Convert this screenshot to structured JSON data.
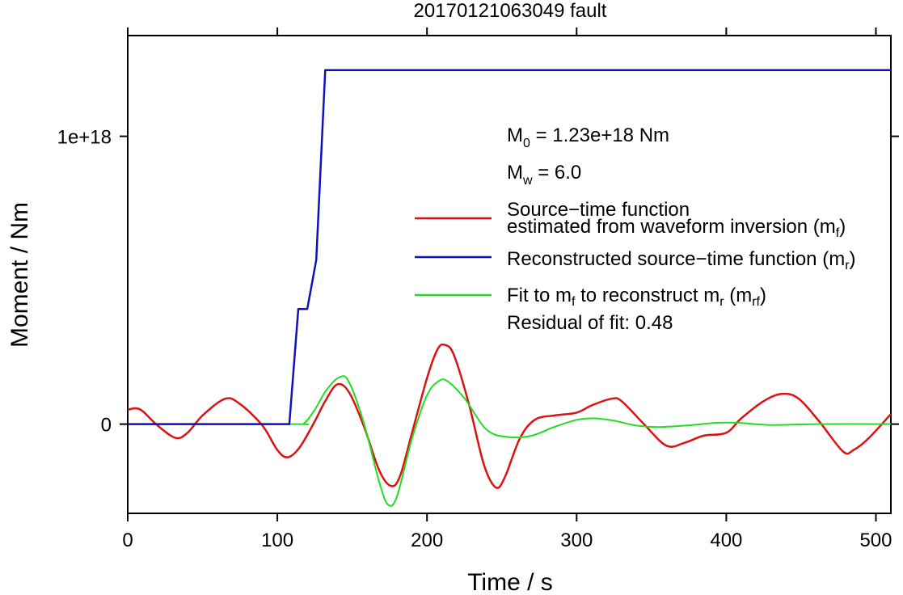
{
  "chart_data": {
    "type": "line",
    "title": "20170121063049 fault",
    "xlabel": "Time / s",
    "ylabel": "Moment / Nm",
    "xlim": [
      0,
      510
    ],
    "ylim": [
      -3.1e+17,
      1.35e+18
    ],
    "x_ticks": [
      0,
      100,
      200,
      300,
      400,
      500
    ],
    "x_tick_labels": [
      "0",
      "100",
      "200",
      "300",
      "400",
      "500"
    ],
    "y_ticks": [
      0,
      1e+18
    ],
    "y_tick_labels": [
      "0",
      "1e+18"
    ],
    "grid": false,
    "colors": {
      "reconstructed": "#1010c0",
      "waveform": "#dd1111",
      "fit": "#22dd22"
    },
    "annotations": {
      "m0_main": "M",
      "m0_sub": "0",
      "m0_rest": " = 1.23e+18 Nm",
      "mw_main": "M",
      "mw_sub": "w",
      "mw_rest": " = 6.0",
      "residual": "Residual of fit: 0.48"
    },
    "legend": {
      "placement": "right",
      "entries": [
        {
          "id": "waveform",
          "line1": "Source−time function",
          "line2_main": "estimated from waveform inversion (m",
          "line2_sub": "f",
          "line2_end": ")"
        },
        {
          "id": "reconstructed",
          "main": "Reconstructed source−time function (m",
          "sub": "r",
          "end": ")"
        },
        {
          "id": "fit",
          "p1": "Fit to m",
          "s1": "f",
          "p2": " to reconstruct m",
          "s2": "r",
          "p3": " (m",
          "s3": "rf",
          "p4": ")"
        }
      ]
    },
    "series": [
      {
        "id": "reconstructed",
        "points": [
          [
            0,
            0
          ],
          [
            108,
            0
          ],
          [
            114,
            4e+17
          ],
          [
            120,
            4e+17
          ],
          [
            126,
            5.7e+17
          ],
          [
            132,
            1.23e+18
          ],
          [
            510,
            1.23e+18
          ]
        ]
      },
      {
        "id": "waveform",
        "points": [
          [
            0,
            5e+16
          ],
          [
            5,
            5.5e+16
          ],
          [
            10,
            4.5e+16
          ],
          [
            20,
            -5000000000000000.0
          ],
          [
            32,
            -4.8e+16
          ],
          [
            40,
            -3e+16
          ],
          [
            50,
            3e+16
          ],
          [
            65,
            8.8e+16
          ],
          [
            75,
            7e+16
          ],
          [
            90,
            -5000000000000000.0
          ],
          [
            100,
            -9e+16
          ],
          [
            107,
            -1.15e+17
          ],
          [
            115,
            -8e+16
          ],
          [
            125,
            1e+16
          ],
          [
            132,
            8e+16
          ],
          [
            140,
            1.38e+17
          ],
          [
            148,
            1.1e+17
          ],
          [
            158,
            -1e+16
          ],
          [
            168,
            -1.6e+17
          ],
          [
            176,
            -2.15e+17
          ],
          [
            182,
            -1.8e+17
          ],
          [
            190,
            -3e+16
          ],
          [
            200,
            1.6e+17
          ],
          [
            207,
            2.6e+17
          ],
          [
            212,
            2.75e+17
          ],
          [
            218,
            2.4e+17
          ],
          [
            228,
            7e+16
          ],
          [
            238,
            -1.4e+17
          ],
          [
            246,
            -2.2e+17
          ],
          [
            252,
            -1.85e+17
          ],
          [
            262,
            -5e+16
          ],
          [
            272,
            1.5e+16
          ],
          [
            285,
            3e+16
          ],
          [
            300,
            4e+16
          ],
          [
            310,
            6.5e+16
          ],
          [
            323,
            8.8e+16
          ],
          [
            330,
            8e+16
          ],
          [
            345,
            0
          ],
          [
            360,
            -7.5e+16
          ],
          [
            372,
            -6.5e+16
          ],
          [
            385,
            -4e+16
          ],
          [
            400,
            -3e+16
          ],
          [
            410,
            2e+16
          ],
          [
            425,
            8e+16
          ],
          [
            437,
            1.05e+17
          ],
          [
            448,
            9e+16
          ],
          [
            462,
            1e+16
          ],
          [
            478,
            -9.5e+16
          ],
          [
            485,
            -9e+16
          ],
          [
            495,
            -5e+16
          ],
          [
            510,
            3.5e+16
          ]
        ]
      },
      {
        "id": "fit",
        "points": [
          [
            0,
            0
          ],
          [
            110,
            0
          ],
          [
            118,
            4000000000000000.0
          ],
          [
            125,
            5e+16
          ],
          [
            133,
            1.2e+17
          ],
          [
            142,
            1.64e+17
          ],
          [
            148,
            1.45e+17
          ],
          [
            158,
            0
          ],
          [
            168,
            -2e+17
          ],
          [
            174,
            -2.8e+17
          ],
          [
            180,
            -2.5e+17
          ],
          [
            190,
            -5e+16
          ],
          [
            200,
            1e+17
          ],
          [
            208,
            1.5e+17
          ],
          [
            214,
            1.48e+17
          ],
          [
            225,
            9e+16
          ],
          [
            240,
            -2e+16
          ],
          [
            255,
            -4.5e+16
          ],
          [
            270,
            -4e+16
          ],
          [
            285,
            -1e+16
          ],
          [
            300,
            1.5e+16
          ],
          [
            312,
            2e+16
          ],
          [
            325,
            1.2e+16
          ],
          [
            340,
            -5000000000000000.0
          ],
          [
            355,
            -1e+16
          ],
          [
            375,
            -4000000000000000.0
          ],
          [
            395,
            5000000000000000.0
          ],
          [
            410,
            4000000000000000.0
          ],
          [
            430,
            -3000000000000000.0
          ],
          [
            460,
            0
          ],
          [
            510,
            0
          ]
        ]
      }
    ]
  }
}
